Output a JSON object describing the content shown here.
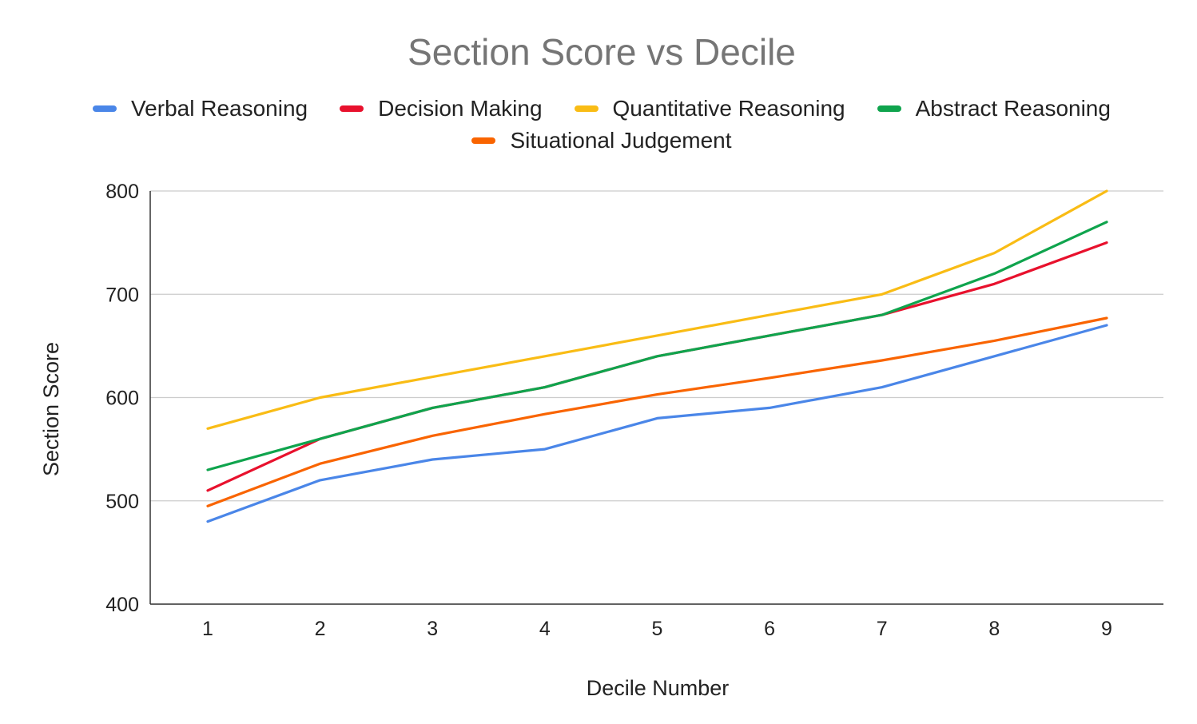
{
  "chart_data": {
    "type": "line",
    "title": "Section Score vs Decile",
    "xlabel": "Decile Number",
    "ylabel": "Section Score",
    "x": [
      "1",
      "2",
      "3",
      "4",
      "5",
      "6",
      "7",
      "8",
      "9"
    ],
    "ylim": [
      400,
      800
    ],
    "yticks": [
      "400",
      "500",
      "600",
      "700",
      "800"
    ],
    "grid": true,
    "legend_position": "top",
    "series": [
      {
        "name": "Verbal Reasoning",
        "color": "#4a86e8",
        "values": [
          480,
          520,
          540,
          550,
          580,
          590,
          610,
          640,
          670
        ]
      },
      {
        "name": "Decision Making",
        "color": "#e8112d",
        "values": [
          510,
          560,
          590,
          610,
          640,
          660,
          680,
          710,
          750
        ]
      },
      {
        "name": "Quantitative Reasoning",
        "color": "#f9bc15",
        "values": [
          570,
          600,
          620,
          640,
          660,
          680,
          700,
          740,
          800
        ]
      },
      {
        "name": "Abstract Reasoning",
        "color": "#0fa44d",
        "values": [
          530,
          560,
          590,
          610,
          640,
          660,
          680,
          720,
          770
        ]
      },
      {
        "name": "Situational Judgement",
        "color": "#f96400",
        "values": [
          495,
          536,
          563,
          584,
          603,
          619,
          636,
          655,
          677
        ]
      }
    ]
  }
}
